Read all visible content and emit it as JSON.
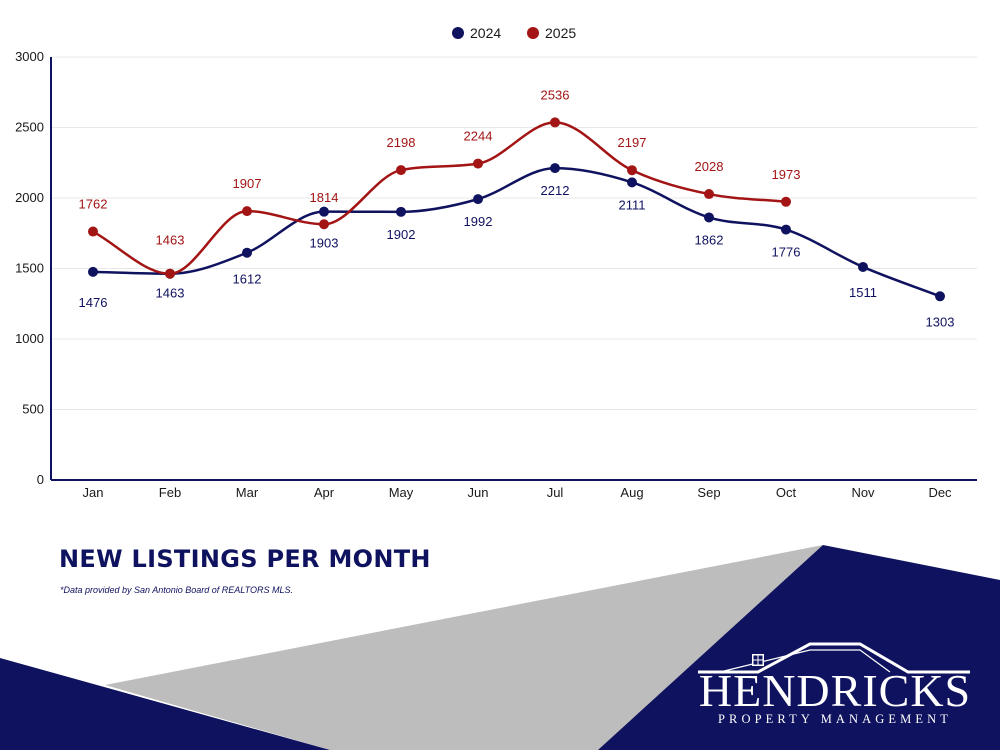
{
  "colors": {
    "navy": "#0f125e",
    "red": "#a31515",
    "grey": "#bdbdbd",
    "grid": "#e8e8e8"
  },
  "chart_data": {
    "type": "line",
    "categories": [
      "Jan",
      "Feb",
      "Mar",
      "Apr",
      "May",
      "Jun",
      "Jul",
      "Aug",
      "Sep",
      "Oct",
      "Nov",
      "Dec"
    ],
    "yticks": [
      0,
      500,
      1000,
      1500,
      2000,
      2500,
      3000
    ],
    "ylim": [
      0,
      3000
    ],
    "grid": true,
    "legend_position": "top-center",
    "series": [
      {
        "name": "2024",
        "color": "#0f125e",
        "values": [
          1476,
          1463,
          1612,
          1903,
          1902,
          1992,
          2212,
          2111,
          1862,
          1776,
          1511,
          1303
        ],
        "labels": [
          "1476",
          "1463",
          "1612",
          "1903",
          "1902",
          "1992",
          "2212",
          "2111",
          "1862",
          "1776",
          "1511",
          "1303"
        ]
      },
      {
        "name": "2025",
        "color": "#a31515",
        "values": [
          1762,
          1463,
          1907,
          1814,
          2198,
          2244,
          2536,
          2197,
          2028,
          1973,
          null,
          null
        ],
        "labels": [
          "1762",
          "1463",
          "1907",
          "1814",
          "2198",
          "2244",
          "2536",
          "2197",
          "2028",
          "1973",
          null,
          null
        ]
      }
    ]
  },
  "footer": {
    "title": "NEW LISTINGS PER MONTH",
    "note": "*Data provided by San Antonio Board of REALTORS MLS."
  },
  "logo": {
    "name": "HENDRICKS",
    "tagline": "PROPERTY MANAGEMENT"
  }
}
